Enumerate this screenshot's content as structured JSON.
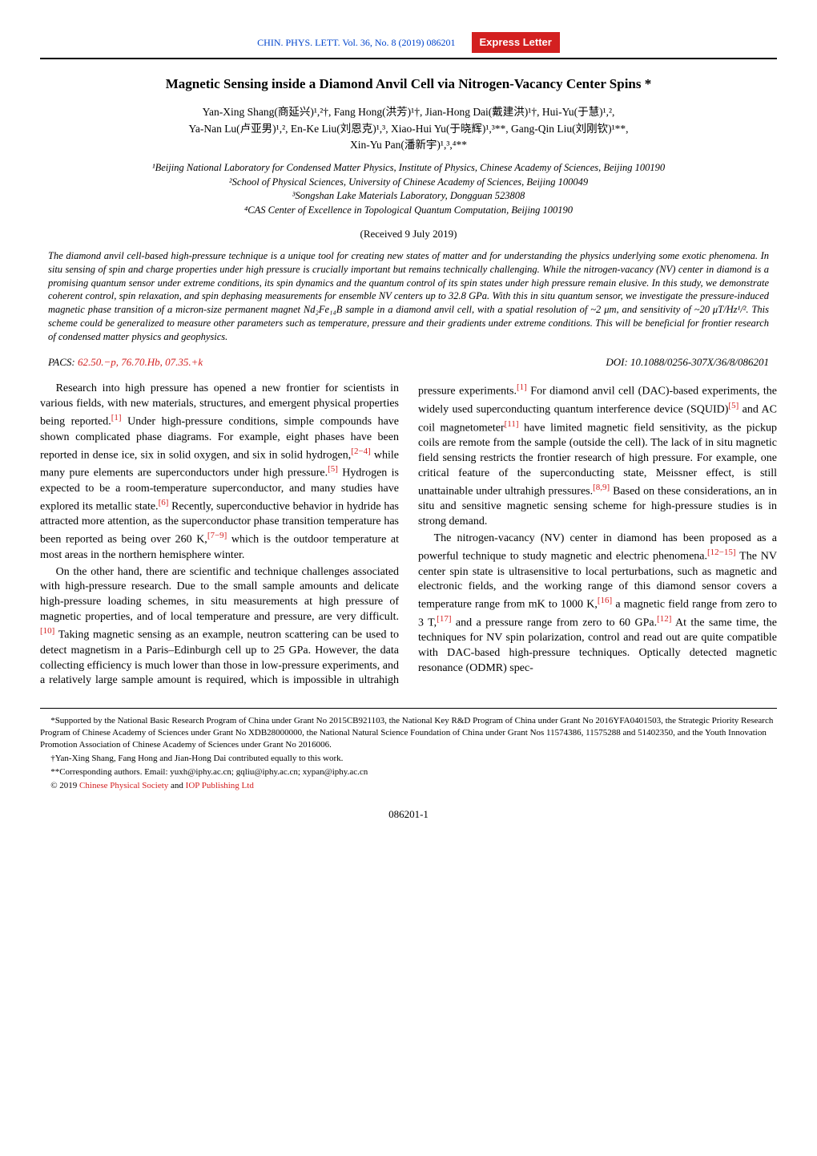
{
  "header": {
    "journal_ref": "CHIN. PHYS. LETT. Vol. 36, No. 8 (2019) 086201",
    "badge": "Express Letter"
  },
  "title": "Magnetic Sensing inside a Diamond Anvil Cell via Nitrogen-Vacancy Center Spins *",
  "authors_line1": "Yan-Xing Shang(商延兴)¹,²†, Fang Hong(洪芳)¹†, Jian-Hong Dai(戴建洪)¹†, Hui-Yu(于慧)¹,²,",
  "authors_line2": "Ya-Nan Lu(卢亚男)¹,², En-Ke Liu(刘恩克)¹,³, Xiao-Hui Yu(于晓辉)¹,³**, Gang-Qin Liu(刘刚钦)¹**,",
  "authors_line3": "Xin-Yu Pan(潘新宇)¹,³,⁴**",
  "affiliations": {
    "a1": "¹Beijing National Laboratory for Condensed Matter Physics, Institute of Physics, Chinese Academy of Sciences, Beijing 100190",
    "a2": "²School of Physical Sciences, University of Chinese Academy of Sciences, Beijing 100049",
    "a3": "³Songshan Lake Materials Laboratory, Dongguan 523808",
    "a4": "⁴CAS Center of Excellence in Topological Quantum Computation, Beijing 100190"
  },
  "received": "(Received 9 July 2019)",
  "abstract": "The diamond anvil cell-based high-pressure technique is a unique tool for creating new states of matter and for understanding the physics underlying some exotic phenomena. In situ sensing of spin and charge properties under high pressure is crucially important but remains technically challenging. While the nitrogen-vacancy (NV) center in diamond is a promising quantum sensor under extreme conditions, its spin dynamics and the quantum control of its spin states under high pressure remain elusive. In this study, we demonstrate coherent control, spin relaxation, and spin dephasing measurements for ensemble NV centers up to 32.8 GPa. With this in situ quantum sensor, we investigate the pressure-induced magnetic phase transition of a micron-size permanent magnet Nd₂Fe₁₄B sample in a diamond anvil cell, with a spatial resolution of ~2 μm, and sensitivity of ~20 μT/Hz¹/². This scheme could be generalized to measure other parameters such as temperature, pressure and their gradients under extreme conditions. This will be beneficial for frontier research of condensed matter physics and geophysics.",
  "pacs_label": "PACS: ",
  "pacs_codes": "62.50.−p, 76.70.Hb, 07.35.+k",
  "doi": "DOI: 10.1088/0256-307X/36/8/086201",
  "body": {
    "p1a": "Research into high pressure has opened a new frontier for scientists in various fields, with new materials, structures, and emergent physical properties being reported.",
    "p1b": " Under high-pressure conditions, simple compounds have shown complicated phase diagrams. For example, eight phases have been reported in dense ice, six in solid oxygen, and six in solid hydrogen,",
    "p1c": " while many pure elements are superconductors under high pressure.",
    "p1d": " Hydrogen is expected to be a room-temperature superconductor, and many studies have explored its metallic state.",
    "p1e": " Recently, superconductive behavior in hydride has attracted more attention, as the superconductor phase transition temperature has been reported as being over 260 K,",
    "p1f": " which is the outdoor temperature at most areas in the northern hemisphere winter.",
    "p2a": "On the other hand, there are scientific and technique challenges associated with high-pressure research. Due to the small sample amounts and delicate high-pressure loading schemes, in situ measurements at high pressure of magnetic properties, and of local temperature and pressure, are very difficult.",
    "p2b": " Taking magnetic sensing as an example, neutron scattering can be used to detect magnetism in a Paris–Edinburgh cell up to 25 GPa. However, the data collecting efficiency is much lower than those in low-pressure",
    "p3a": "experiments, and a relatively large sample amount is required, which is impossible in ultrahigh pressure experiments.",
    "p3b": " For diamond anvil cell (DAC)-based experiments, the widely used superconducting quantum interference device (SQUID)",
    "p3c": " and AC coil magnetometer",
    "p3d": " have limited magnetic field sensitivity, as the pickup coils are remote from the sample (outside the cell). The lack of in situ magnetic field sensing restricts the frontier research of high pressure. For example, one critical feature of the superconducting state, Meissner effect, is still unattainable under ultrahigh pressures.",
    "p3e": " Based on these considerations, an in situ and sensitive magnetic sensing scheme for high-pressure studies is in strong demand.",
    "p4a": "The nitrogen-vacancy (NV) center in diamond has been proposed as a powerful technique to study magnetic and electric phenomena.",
    "p4b": " The NV center spin state is ultrasensitive to local perturbations, such as magnetic and electronic fields, and the working range of this diamond sensor covers a temperature range from mK to 1000 K,",
    "p4c": " a magnetic field range from zero to 3 T,",
    "p4d": " and a pressure range from zero to 60 GPa.",
    "p4e": " At the same time, the techniques for NV spin polarization, control and read out are quite compatible with DAC-based high-pressure techniques. Optically detected magnetic resonance (ODMR) spec-"
  },
  "refs": {
    "r1": "[1]",
    "r2_4": "[2−4]",
    "r5": "[5]",
    "r6": "[6]",
    "r7_9": "[7−9]",
    "r10": "[10]",
    "r11": "[11]",
    "r8_9": "[8,9]",
    "r12_15": "[12−15]",
    "r16": "[16]",
    "r17": "[17]",
    "r12": "[12]"
  },
  "footnotes": {
    "f1": "*Supported by the National Basic Research Program of China under Grant No 2015CB921103, the National Key R&D Program of China under Grant No 2016YFA0401503, the Strategic Priority Research Program of Chinese Academy of Sciences under Grant No XDB28000000, the National Natural Science Foundation of China under Grant Nos 11574386, 11575288 and 51402350, and the Youth Innovation Promotion Association of Chinese Academy of Sciences under Grant No 2016006.",
    "f2": "†Yan-Xing Shang, Fang Hong and Jian-Hong Dai contributed equally to this work.",
    "f3": "**Corresponding authors. Email: yuxh@iphy.ac.cn; gqliu@iphy.ac.cn; xypan@iphy.ac.cn",
    "f4a": "© 2019 ",
    "f4b": "Chinese Physical Society",
    "f4c": " and ",
    "f4d": "IOP Publishing Ltd"
  },
  "page_number": "086201-1"
}
